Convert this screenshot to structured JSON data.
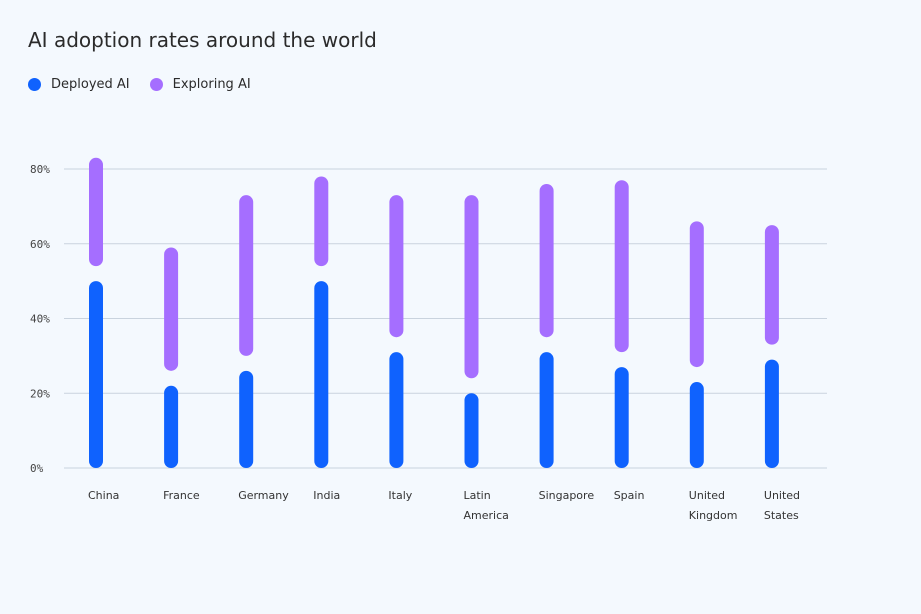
{
  "chart_data": {
    "type": "bar",
    "title": "AI adoption rates around the world",
    "categories": [
      [
        "China"
      ],
      [
        "France"
      ],
      [
        "Germany"
      ],
      [
        "India"
      ],
      [
        "Italy"
      ],
      [
        "Latin",
        "America"
      ],
      [
        "Singapore"
      ],
      [
        "Spain"
      ],
      [
        "United",
        "Kingdom"
      ],
      [
        "United",
        "States"
      ]
    ],
    "series": [
      {
        "name": "Deployed AI",
        "color": "#0f62fe",
        "values": [
          50,
          22,
          26,
          50,
          31,
          20,
          31,
          27,
          23,
          29
        ]
      },
      {
        "name": "Exploring AI",
        "color": "#a56eff",
        "values": [
          83,
          59,
          73,
          78,
          73,
          73,
          76,
          77,
          66,
          65
        ],
        "starts": [
          54,
          26,
          30,
          54,
          35,
          24,
          35,
          31,
          27,
          33
        ]
      }
    ],
    "ylim": [
      0,
      80
    ],
    "yticks": [
      "0%",
      "20%",
      "40%",
      "60%",
      "80%"
    ],
    "ytick_values": [
      0,
      20,
      40,
      60,
      80
    ],
    "grid": true,
    "legend": "top-left"
  }
}
